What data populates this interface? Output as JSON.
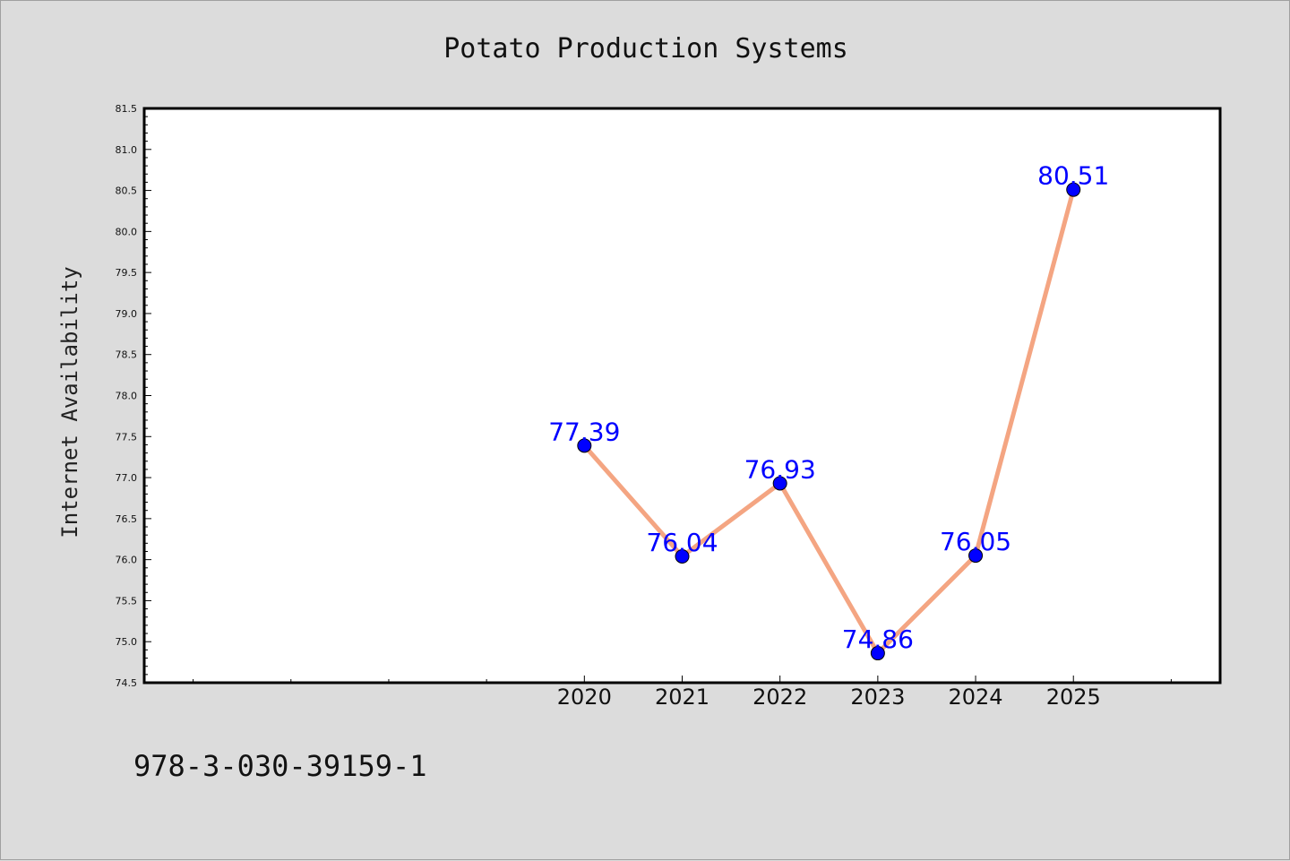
{
  "colors": {
    "background": "#dcdcdc",
    "plot_background": "#ffffff",
    "line": "#f4a582",
    "marker": "#0000ff",
    "data_label": "#0000ff"
  },
  "footer": {
    "isbn": "978-3-030-39159-1"
  },
  "chart_data": {
    "type": "line",
    "title": "Potato Production Systems",
    "xlabel": "",
    "ylabel": "Internet Availability",
    "x": [
      2020,
      2021,
      2022,
      2023,
      2024,
      2025
    ],
    "x_tick_labels": [
      "2020",
      "2021",
      "2022",
      "2023",
      "2024",
      "2025"
    ],
    "xlim": [
      2015.5,
      2026.5
    ],
    "ylim": [
      74.5,
      81.5
    ],
    "y_ticks": [
      "74.5",
      "75.0",
      "75.5",
      "76.0",
      "76.5",
      "77.0",
      "77.5",
      "78.0",
      "78.5",
      "79.0",
      "79.5",
      "80.0",
      "80.5",
      "81.0",
      "81.5"
    ],
    "series": [
      {
        "values": [
          77.39,
          76.04,
          76.93,
          74.86,
          76.05,
          80.51
        ],
        "data_labels": [
          "77.39",
          "76.04",
          "76.93",
          "74.86",
          "76.05",
          "80.51"
        ]
      }
    ],
    "grid": false,
    "legend": "none"
  }
}
